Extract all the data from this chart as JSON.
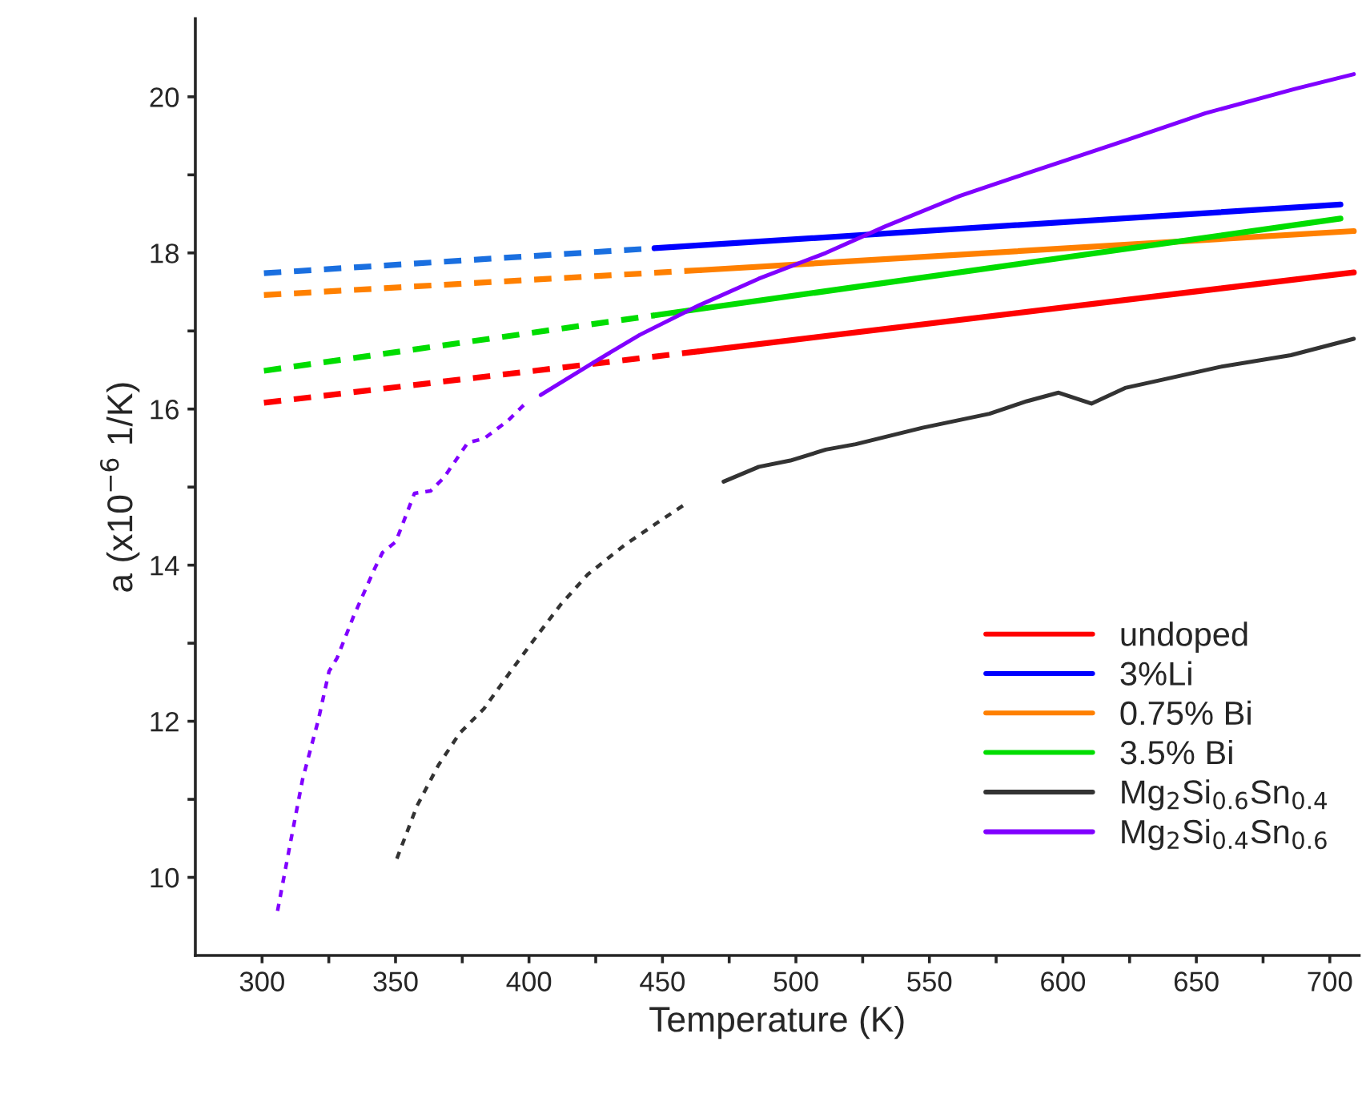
{
  "chart_data": {
    "type": "line",
    "xlabel": "Temperature (K)",
    "ylabel": "a (x10$^{−6}$ 1/K)",
    "xlim": [
      275,
      711
    ],
    "ylim": [
      9,
      21
    ],
    "xticks": [
      300,
      {
        "value": 325,
        "label": null
      },
      350,
      {
        "value": 375,
        "label": null
      },
      400,
      {
        "value": 425,
        "label": null
      },
      450,
      {
        "value": 475,
        "label": null
      },
      500,
      {
        "value": 525,
        "label": null
      },
      550,
      {
        "value": 575,
        "label": null
      },
      600,
      {
        "value": 625,
        "label": null
      },
      650,
      {
        "value": 675,
        "label": null
      },
      700
    ],
    "yticks": [
      10,
      {
        "value": 11,
        "label": null
      },
      12,
      {
        "value": 13,
        "label": null
      },
      14,
      {
        "value": 15,
        "label": null
      },
      16,
      {
        "value": 17,
        "label": null
      },
      18,
      {
        "value": 19,
        "label": null
      },
      20
    ],
    "grid": false,
    "legend": "lower right",
    "series": [
      {
        "color": "#ff0000",
        "line_style": "dashed",
        "x": [
          300.7,
          463.8
        ],
        "values": [
          16.08,
          16.74
        ]
      },
      {
        "color": "#1a6fe0",
        "line_style": "dashed",
        "x": [
          300.7,
          447
        ],
        "values": [
          17.74,
          18.06
        ]
      },
      {
        "color": "#ff8000",
        "line_style": "dashed",
        "x": [
          300.7,
          464.7
        ],
        "values": [
          17.46,
          17.78
        ]
      },
      {
        "color": "#00dd00",
        "line_style": "dashed",
        "x": [
          300.7,
          447
        ],
        "values": [
          16.49,
          17.2
        ]
      },
      {
        "color": "#8000ff",
        "line_style": "dotted",
        "x": [
          305.8,
          310.2,
          315.2,
          321.1,
          325.1,
          328.1,
          334.1,
          342.1,
          345.1,
          350.1,
          357.1,
          363.1,
          368.1,
          377.1,
          383.1,
          392.1,
          398.0
        ],
        "values": [
          9.57,
          10.37,
          11.26,
          12.02,
          12.64,
          12.81,
          13.33,
          13.95,
          14.16,
          14.3,
          14.92,
          14.95,
          15.12,
          15.57,
          15.62,
          15.85,
          16.05
        ]
      },
      {
        "color": "#333333",
        "line_style": "dotted",
        "x": [
          350.5,
          358.1,
          366.1,
          374.1,
          383.1,
          394.0,
          402.0,
          412.0,
          422.0,
          435.9,
          447.9,
          458.9
        ],
        "values": [
          10.24,
          10.92,
          11.44,
          11.85,
          12.16,
          12.68,
          13.05,
          13.5,
          13.88,
          14.26,
          14.54,
          14.79
        ]
      },
      {
        "name": "undoped",
        "color": "#ff0000",
        "line_style": "solid",
        "x": [
          463.8,
          709
        ],
        "values": [
          16.74,
          17.75
        ]
      },
      {
        "name": "3%Li",
        "color": "#0000ff",
        "line_style": "solid",
        "x": [
          447,
          704
        ],
        "values": [
          18.06,
          18.62
        ]
      },
      {
        "name": "0.75% Bi",
        "color": "#ff8000",
        "line_style": "solid",
        "x": [
          464.7,
          709
        ],
        "values": [
          17.78,
          18.28
        ]
      },
      {
        "name": "3.5% Bi",
        "color": "#00dd00",
        "line_style": "solid",
        "x": [
          447,
          704
        ],
        "values": [
          17.2,
          18.44
        ]
      },
      {
        "name": "Mg$_{2}$Si$_{0.6}$Sn$_{0.4}$",
        "color": "#333333",
        "line_style": "solid",
        "x": [
          472.9,
          486.1,
          497.9,
          511.2,
          522.4,
          547.4,
          572.5,
          586.5,
          598.4,
          610.7,
          623.3,
          636.6,
          658.9,
          685.4,
          709
        ],
        "values": [
          15.07,
          15.26,
          15.34,
          15.48,
          15.55,
          15.76,
          15.94,
          16.1,
          16.21,
          16.07,
          16.27,
          16.37,
          16.54,
          16.69,
          16.9
        ]
      },
      {
        "name": "Mg$_{2}$Si$_{0.4}$Sn$_{0.6}$",
        "color": "#8000ff",
        "line_style": "solid",
        "x": [
          404.4,
          424.8,
          441.5,
          463.8,
          486.1,
          511.2,
          533.5,
          561.4,
          586.5,
          619.9,
          653.4,
          686.8,
          709
        ],
        "values": [
          16.18,
          16.61,
          16.95,
          17.33,
          17.67,
          18.0,
          18.34,
          18.73,
          19.02,
          19.4,
          19.79,
          20.1,
          20.29
        ]
      }
    ]
  }
}
